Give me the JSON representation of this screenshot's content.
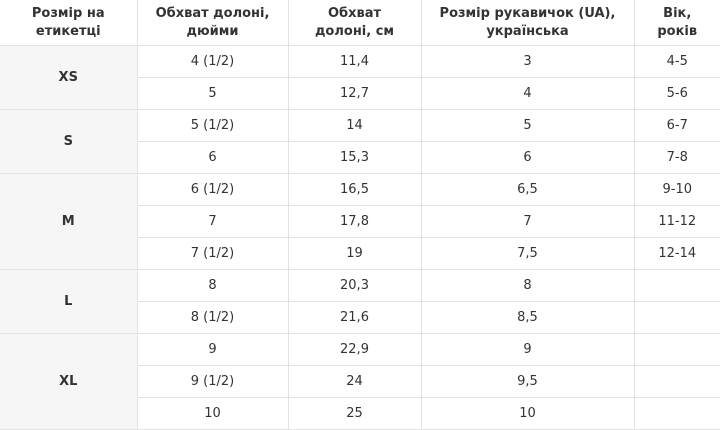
{
  "table": {
    "header": [
      "Розмір на етикетці",
      "Обхват долоні, дюйми",
      "Обхват долоні, см",
      "Розмір рукавичок (UA), українська",
      "Вік, років"
    ],
    "groups": [
      {
        "size": "XS",
        "rows": [
          [
            "4 (1/2)",
            "11,4",
            "3",
            "4-5"
          ],
          [
            "5",
            "12,7",
            "4",
            "5-6"
          ]
        ]
      },
      {
        "size": "S",
        "rows": [
          [
            "5 (1/2)",
            "14",
            "5",
            "6-7"
          ],
          [
            "6",
            "15,3",
            "6",
            "7-8"
          ]
        ]
      },
      {
        "size": "M",
        "rows": [
          [
            "6 (1/2)",
            "16,5",
            "6,5",
            "9-10"
          ],
          [
            "7",
            "17,8",
            "7",
            "11-12"
          ],
          [
            "7 (1/2)",
            "19",
            "7,5",
            "12-14"
          ]
        ]
      },
      {
        "size": "L",
        "rows": [
          [
            "8",
            "20,3",
            "8"
          ],
          [
            "8 (1/2)",
            "21,6",
            "8,5"
          ]
        ]
      },
      {
        "size": "XL",
        "rows": [
          [
            "9",
            "22,9",
            "9"
          ],
          [
            "9 (1/2)",
            "24",
            "9,5"
          ],
          [
            "10",
            "25",
            "10"
          ]
        ]
      }
    ]
  }
}
